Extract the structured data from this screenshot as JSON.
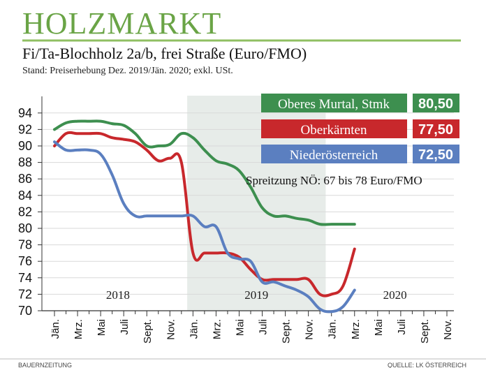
{
  "header": {
    "title": "HOLZMARKT",
    "subtitle": "Fi/Ta-Blochholz 2a/b, frei Straße (Euro/FMO)",
    "note": "Stand: Preiserhebung Dez. 2019/Jän. 2020; exkl. USt."
  },
  "colors": {
    "title": "#6aa446",
    "rule": "#8fbf62",
    "green": "#3d8f4f",
    "red": "#c8282c",
    "blue": "#5b7fc0",
    "band": "#e7ece9",
    "grid": "#d9d9d9",
    "axis": "#333333"
  },
  "chart_data": {
    "type": "line",
    "ylim": [
      70,
      95
    ],
    "yticks": [
      70,
      72,
      74,
      76,
      78,
      80,
      82,
      84,
      86,
      88,
      90,
      92,
      94
    ],
    "x_month_range": [
      1,
      35
    ],
    "x_tick_labels": [
      "Jän.",
      "Mrz.",
      "Mai",
      "Juli",
      "Sept.",
      "Nov.",
      "Jän.",
      "Mrz.",
      "Mai",
      "Juli",
      "Sept.",
      "Nov.",
      "Jän.",
      "Mrz.",
      "Mai",
      "Juli",
      "Sept.",
      "Nov."
    ],
    "year_labels": [
      "2018",
      "2019",
      "2020"
    ],
    "highlight_year": "2019",
    "annotation": "Spreitzung NÖ: 67 bis 78 Euro/FMO",
    "series": [
      {
        "name": "Oberes Murtal, Stmk",
        "final_label": "80,50",
        "color": "#3d8f4f",
        "points": [
          [
            1,
            92
          ],
          [
            2,
            92.8
          ],
          [
            3,
            93
          ],
          [
            4,
            93
          ],
          [
            5,
            93
          ],
          [
            6,
            92.7
          ],
          [
            7,
            92.5
          ],
          [
            8,
            91.5
          ],
          [
            9,
            90
          ],
          [
            10,
            90
          ],
          [
            11,
            90.2
          ],
          [
            12,
            91.5
          ],
          [
            13,
            91
          ],
          [
            14,
            89.5
          ],
          [
            15,
            88.2
          ],
          [
            16,
            87.8
          ],
          [
            17,
            87
          ],
          [
            18,
            85
          ],
          [
            19,
            82.5
          ],
          [
            20,
            81.5
          ],
          [
            21,
            81.5
          ],
          [
            22,
            81.2
          ],
          [
            23,
            81
          ],
          [
            24,
            80.5
          ],
          [
            25,
            80.5
          ],
          [
            26,
            80.5
          ],
          [
            27,
            80.5
          ]
        ]
      },
      {
        "name": "Oberkärnten",
        "final_label": "77,50",
        "color": "#c8282c",
        "points": [
          [
            1,
            90
          ],
          [
            2,
            91.5
          ],
          [
            3,
            91.5
          ],
          [
            4,
            91.5
          ],
          [
            5,
            91.5
          ],
          [
            6,
            91
          ],
          [
            7,
            90.8
          ],
          [
            8,
            90.5
          ],
          [
            9,
            89.5
          ],
          [
            10,
            88.2
          ],
          [
            11,
            88.5
          ],
          [
            12,
            88
          ],
          [
            13,
            77
          ],
          [
            14,
            77
          ],
          [
            15,
            77
          ],
          [
            16,
            77
          ],
          [
            17,
            76.5
          ],
          [
            18,
            75
          ],
          [
            19,
            73.8
          ],
          [
            20,
            73.8
          ],
          [
            21,
            73.8
          ],
          [
            22,
            73.8
          ],
          [
            23,
            73.8
          ],
          [
            24,
            72
          ],
          [
            25,
            72
          ],
          [
            26,
            73
          ],
          [
            27,
            77.5
          ]
        ]
      },
      {
        "name": "Niederösterreich",
        "final_label": "72,50",
        "color": "#5b7fc0",
        "points": [
          [
            1,
            90.5
          ],
          [
            2,
            89.5
          ],
          [
            3,
            89.5
          ],
          [
            4,
            89.5
          ],
          [
            5,
            89
          ],
          [
            6,
            86.5
          ],
          [
            7,
            83
          ],
          [
            8,
            81.5
          ],
          [
            9,
            81.5
          ],
          [
            10,
            81.5
          ],
          [
            11,
            81.5
          ],
          [
            12,
            81.5
          ],
          [
            13,
            81.5
          ],
          [
            14,
            80.2
          ],
          [
            15,
            80.2
          ],
          [
            16,
            77
          ],
          [
            17,
            76.3
          ],
          [
            18,
            76
          ],
          [
            19,
            73.5
          ],
          [
            20,
            73.5
          ],
          [
            21,
            73
          ],
          [
            22,
            72.5
          ],
          [
            23,
            71.7
          ],
          [
            24,
            70.2
          ],
          [
            25,
            69.9
          ],
          [
            26,
            70.5
          ],
          [
            27,
            72.5
          ]
        ]
      }
    ]
  },
  "footer": {
    "left": "BAUERNZEITUNG",
    "right": "QUELLE: LK ÖSTERREICH"
  }
}
